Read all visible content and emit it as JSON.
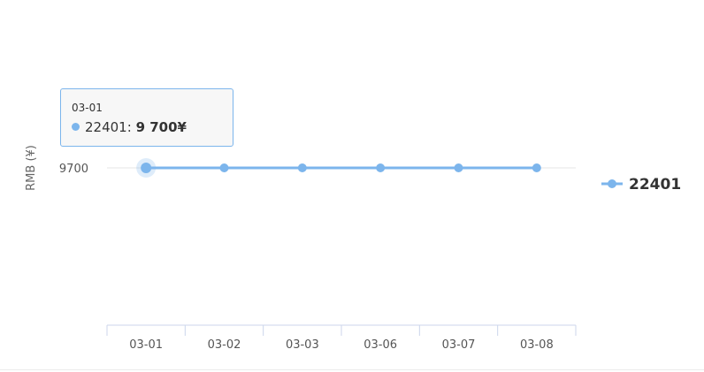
{
  "chart_data": {
    "type": "line",
    "categories": [
      "03-01",
      "03-02",
      "03-03",
      "03-06",
      "03-07",
      "03-08"
    ],
    "series": [
      {
        "name": "22401",
        "values": [
          9700,
          9700,
          9700,
          9700,
          9700,
          9700
        ]
      }
    ],
    "xlabel": "",
    "ylabel": "RMB (¥)",
    "y_ticks": [
      "9700"
    ],
    "legend_position": "right",
    "grid": true,
    "colors": {
      "series": "#7cb5ec",
      "grid": "#e6e6e6",
      "axis": "#ccd6eb"
    }
  },
  "tooltip": {
    "header": "03-01",
    "series_name": "22401",
    "separator": ":",
    "value": "9 700¥"
  }
}
